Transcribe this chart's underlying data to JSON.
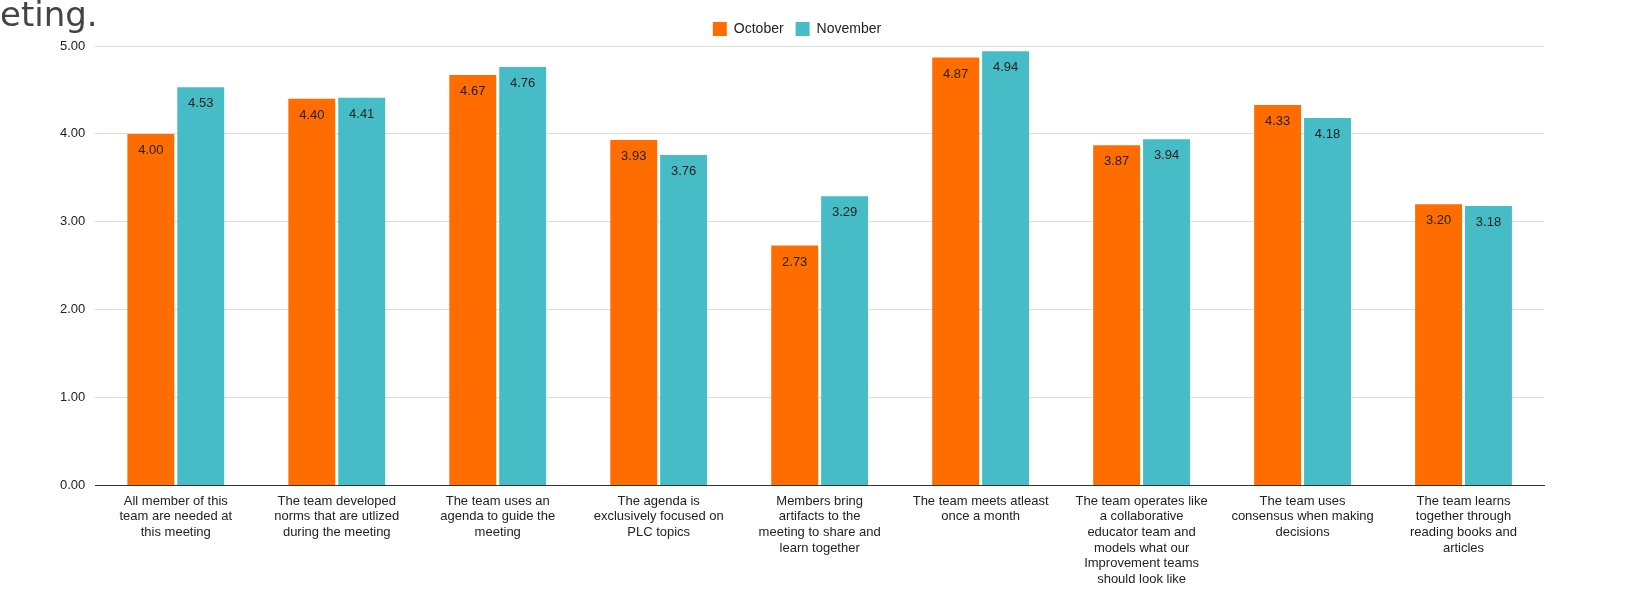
{
  "chart_data": {
    "type": "bar",
    "annotations": [
      "eting."
    ],
    "categories": [
      "All member of this team are needed at this meeting",
      "The team developed norms that are utlized during the meeting",
      "The team uses an agenda to guide the meeting",
      "The agenda is exclusively focused on PLC topics",
      "Members bring artifacts to the meeting to share and learn together",
      "The team meets atleast once a month",
      "The team operates like a collaborative educator team and models what our Improvement teams should look like",
      "The team uses consensus when making decisions",
      "The team learns together through reading books and articles"
    ],
    "series": [
      {
        "name": "October",
        "color": "#ff6d01",
        "values": [
          4.0,
          4.4,
          4.67,
          3.93,
          2.73,
          4.87,
          3.87,
          4.33,
          3.2
        ],
        "value_labels": [
          "4.00",
          "4.40",
          "4.67",
          "3.93",
          "2.73",
          "4.87",
          "3.87",
          "4.33",
          "3.20"
        ]
      },
      {
        "name": "November",
        "color": "#46bdc6",
        "values": [
          4.53,
          4.41,
          4.76,
          3.76,
          3.29,
          4.94,
          3.94,
          4.18,
          3.18
        ],
        "value_labels": [
          "4.53",
          "4.41",
          "4.76",
          "3.76",
          "3.29",
          "4.94",
          "3.94",
          "4.18",
          "3.18"
        ]
      }
    ],
    "ylim": [
      0,
      5
    ],
    "yticks": [
      {
        "value": 0,
        "label": "0.00"
      },
      {
        "value": 1,
        "label": "1.00"
      },
      {
        "value": 2,
        "label": "2.00"
      },
      {
        "value": 3,
        "label": "3.00"
      },
      {
        "value": 4,
        "label": "4.00"
      },
      {
        "value": 5,
        "label": "5.00"
      }
    ],
    "grid": "y",
    "legend": "top"
  }
}
